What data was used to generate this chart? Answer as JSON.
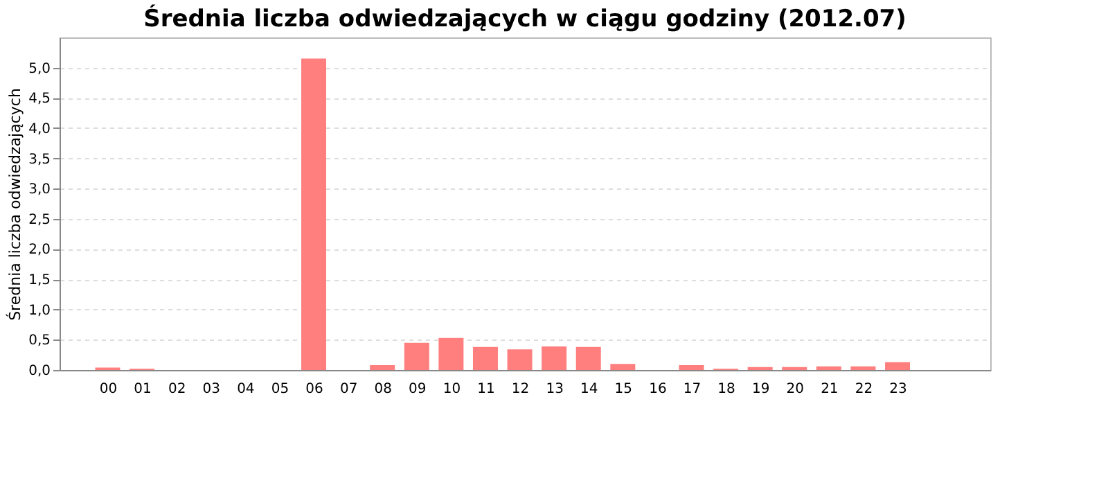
{
  "chart_data": {
    "type": "bar",
    "title": "Średnia liczba odwiedzających w ciągu godziny (2012.07)",
    "ylabel": "Średnia liczba odwiedzających",
    "categories": [
      "00",
      "01",
      "02",
      "03",
      "04",
      "05",
      "06",
      "07",
      "08",
      "09",
      "10",
      "11",
      "12",
      "13",
      "14",
      "15",
      "16",
      "17",
      "18",
      "19",
      "20",
      "21",
      "22",
      "23"
    ],
    "values": [
      0.04,
      0.02,
      0,
      0,
      0,
      0,
      5.15,
      0,
      0.08,
      0.45,
      0.53,
      0.38,
      0.34,
      0.39,
      0.38,
      0.1,
      0,
      0.08,
      0.02,
      0.05,
      0.05,
      0.06,
      0.06,
      0.13
    ],
    "color": "#ff7f7f",
    "ylim": [
      0,
      5.5
    ],
    "yticks": [
      {
        "value": 0,
        "label": "0,0"
      },
      {
        "value": 0.5,
        "label": "0,5"
      },
      {
        "value": 1,
        "label": "1,0"
      },
      {
        "value": 1.5,
        "label": "1,5"
      },
      {
        "value": 2,
        "label": "2,0"
      },
      {
        "value": 2.5,
        "label": "2,5"
      },
      {
        "value": 3,
        "label": "3,0"
      },
      {
        "value": 3.5,
        "label": "3,5"
      },
      {
        "value": 4,
        "label": "4,0"
      },
      {
        "value": 4.5,
        "label": "4,5"
      },
      {
        "value": 5,
        "label": "5,0"
      }
    ],
    "grid": "y"
  }
}
